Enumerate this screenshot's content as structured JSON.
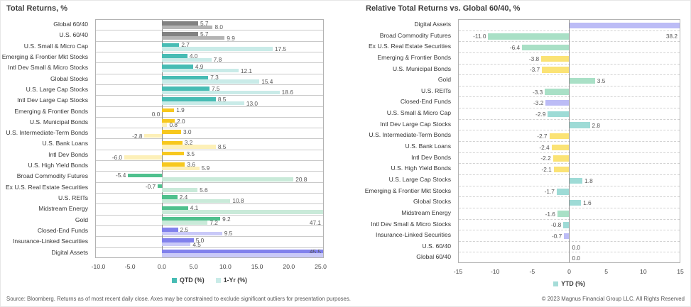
{
  "chart_data": [
    {
      "type": "bar",
      "orientation": "horizontal",
      "title": "Total Returns, %",
      "xlim": [
        -10.5,
        25.5
      ],
      "xticks": [
        "-10.0",
        "-5.0",
        "0.0",
        "5.0",
        "10.0",
        "15.0",
        "20.0",
        "25.0"
      ],
      "zero_label_side": "left",
      "grid": "row-boxes",
      "legend_position": "bottom",
      "legend": [
        {
          "label": "QTD (%)",
          "color": "#47bcb4"
        },
        {
          "label": "1-Yr (%)",
          "color": "#c9ebe8"
        }
      ],
      "categories": [
        "Global 60/40",
        "U.S. 60/40",
        "U.S. Small & Micro Cap",
        "Emerging & Frontier Mkt Stocks",
        "Intl Dev Small & Micro Stocks",
        "Global Stocks",
        "U.S. Large Cap Stocks",
        "Intl Dev Large Cap Stocks",
        "Emerging & Frontier Bonds",
        "U.S. Municipal Bonds",
        "U.S. Intermediate-Term Bonds",
        "U.S. Bank Loans",
        "Intl Dev Bonds",
        "U.S. High Yield Bonds",
        "Broad Commodity Futures",
        "Ex U.S. Real Estate Securities",
        "U.S. REITs",
        "Midstream Energy",
        "Gold",
        "Closed-End Funds",
        "Insurance-Linked Securities",
        "Digital Assets"
      ],
      "groups": [
        "balanced",
        "balanced",
        "stocks",
        "stocks",
        "stocks",
        "stocks",
        "stocks",
        "stocks",
        "bonds",
        "bonds",
        "bonds",
        "bonds",
        "bonds",
        "bonds",
        "real",
        "real",
        "real",
        "real",
        "real",
        "alts",
        "alts",
        "alts"
      ],
      "series": [
        {
          "name": "QTD (%)",
          "values": [
            5.7,
            5.7,
            2.7,
            4.0,
            4.9,
            7.3,
            7.5,
            8.5,
            1.9,
            2.0,
            3.0,
            3.2,
            3.5,
            3.6,
            -5.4,
            -0.7,
            2.4,
            4.1,
            9.2,
            2.5,
            5.0,
            45.5
          ],
          "labels": [
            "5.7",
            "5.7",
            "2.7",
            "4.0",
            "4.9",
            "7.3",
            "7.5",
            "8.5",
            "1.9",
            "2.0",
            "3.0",
            "3.2",
            "3.5",
            "3.6",
            "-5.4",
            "-0.7",
            "2.4",
            "4.1",
            "9.2",
            "2.5",
            "5.0",
            "45.5"
          ]
        },
        {
          "name": "1-Yr (%)",
          "values": [
            8.0,
            9.9,
            17.5,
            7.8,
            12.1,
            15.4,
            18.6,
            13.0,
            0.0,
            0.8,
            -2.8,
            8.5,
            -6.0,
            5.9,
            20.8,
            5.6,
            10.8,
            47.1,
            7.2,
            9.5,
            4.5,
            null
          ],
          "labels": [
            "8.0",
            "9.9",
            "17.5",
            "7.8",
            "12.1",
            "15.4",
            "18.6",
            "13.0",
            "0.0",
            "0.8",
            "-2.8",
            "8.5",
            "-6.0",
            "5.9",
            "20.8",
            "5.6",
            "10.8",
            "47.1",
            "7.2",
            "9.5",
            "4.5",
            ""
          ]
        }
      ]
    },
    {
      "type": "bar",
      "orientation": "horizontal",
      "title": "Relative Total Returns vs. Global 60/40, %",
      "xlim": [
        -15,
        15
      ],
      "xticks": [
        "-15",
        "-10",
        "-5",
        "0",
        "5",
        "10",
        "15"
      ],
      "zero_label_side": "right",
      "grid": "dashed-rows",
      "legend_position": "bottom",
      "legend": [
        {
          "label": "YTD (%)",
          "color": "#a5dcd8"
        }
      ],
      "categories": [
        "Digital Assets",
        "Broad Commodity Futures",
        "Ex U.S. Real Estate Securities",
        "Emerging & Frontier Bonds",
        "U.S. Municipal Bonds",
        "Gold",
        "U.S. REITs",
        "Closed-End Funds",
        "U.S. Small & Micro Cap",
        "Intl Dev Large Cap Stocks",
        "U.S. Intermediate-Term Bonds",
        "U.S. Bank Loans",
        "Intl Dev Bonds",
        "U.S. High Yield Bonds",
        "U.S. Large Cap Stocks",
        "Emerging & Frontier Mkt Stocks",
        "Global Stocks",
        "Midstream Energy",
        "Intl Dev Small & Micro Stocks",
        "Insurance-Linked Securities",
        "U.S. 60/40",
        "Global 60/40"
      ],
      "groups": [
        "alts",
        "real",
        "real",
        "bonds",
        "bonds",
        "real",
        "real",
        "alts",
        "stocks",
        "stocks",
        "bonds",
        "bonds",
        "bonds",
        "bonds",
        "stocks",
        "stocks",
        "stocks",
        "real",
        "stocks",
        "alts",
        "balanced",
        "balanced"
      ],
      "series": [
        {
          "name": "YTD (%)",
          "values": [
            38.2,
            -11.0,
            -6.4,
            -3.8,
            -3.7,
            3.5,
            -3.3,
            -3.2,
            -2.9,
            2.8,
            -2.7,
            -2.4,
            -2.2,
            -2.1,
            1.8,
            -1.7,
            1.6,
            -1.6,
            -0.8,
            -0.7,
            0.0,
            0.0
          ],
          "labels": [
            "38.2",
            "-11.0",
            "-6.4",
            "-3.8",
            "-3.7",
            "3.5",
            "-3.3",
            "-3.2",
            "-2.9",
            "2.8",
            "-2.7",
            "-2.4",
            "-2.2",
            "-2.1",
            "1.8",
            "-1.7",
            "1.6",
            "-1.6",
            "-0.8",
            "-0.7",
            "0.0",
            "0.0"
          ]
        }
      ]
    }
  ],
  "colors": {
    "balanced": {
      "qtd": "#828282",
      "yr": "#b4b4b4",
      "mid": "#bdbdbd"
    },
    "stocks": {
      "qtd": "#47bcb4",
      "yr": "#c9ebe8",
      "mid": "#9edbd6"
    },
    "bonds": {
      "qtd": "#f7c81e",
      "yr": "#fdf0b8",
      "mid": "#fbe375"
    },
    "real": {
      "qtd": "#4fc08d",
      "yr": "#c9ead9",
      "mid": "#a9e0c6"
    },
    "alts": {
      "qtd": "#8181ec",
      "yr": "#c9c9f8",
      "mid": "#bcbcf6"
    }
  },
  "footer": {
    "source": "Source: Bloomberg. Returns as of most recent daily close. Axes may be constrained to exclude significant outliers for presentation purposes.",
    "copyright": "© 2023 Magnus Financial Group LLC. All Rights Reserved"
  }
}
